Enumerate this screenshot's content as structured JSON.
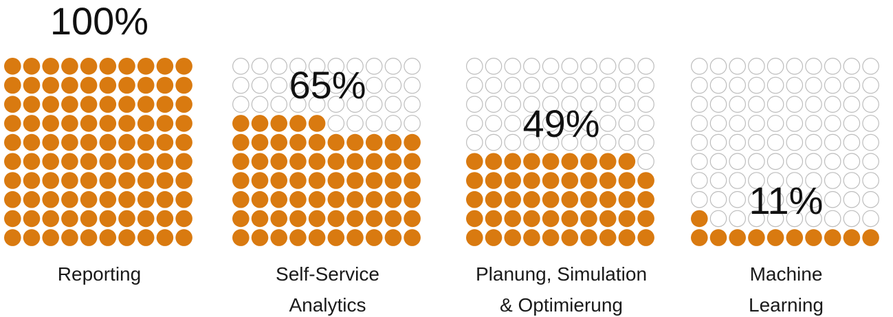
{
  "chart_data": {
    "type": "waffle",
    "grid": "10x10",
    "unit": "%",
    "colors": {
      "filled": "#D97A10",
      "empty_fill": "#ffffff",
      "empty_stroke": "#bdbdbd"
    },
    "items": [
      {
        "value": 100,
        "value_label": "100%",
        "category": [
          "Reporting"
        ]
      },
      {
        "value": 65,
        "value_label": "65%",
        "category": [
          "Self-Service",
          "Analytics"
        ]
      },
      {
        "value": 49,
        "value_label": "49%",
        "category": [
          "Planung, Simulation",
          "& Optimierung"
        ]
      },
      {
        "value": 11,
        "value_label": "11%",
        "category": [
          "Machine",
          "Learning"
        ]
      }
    ]
  }
}
